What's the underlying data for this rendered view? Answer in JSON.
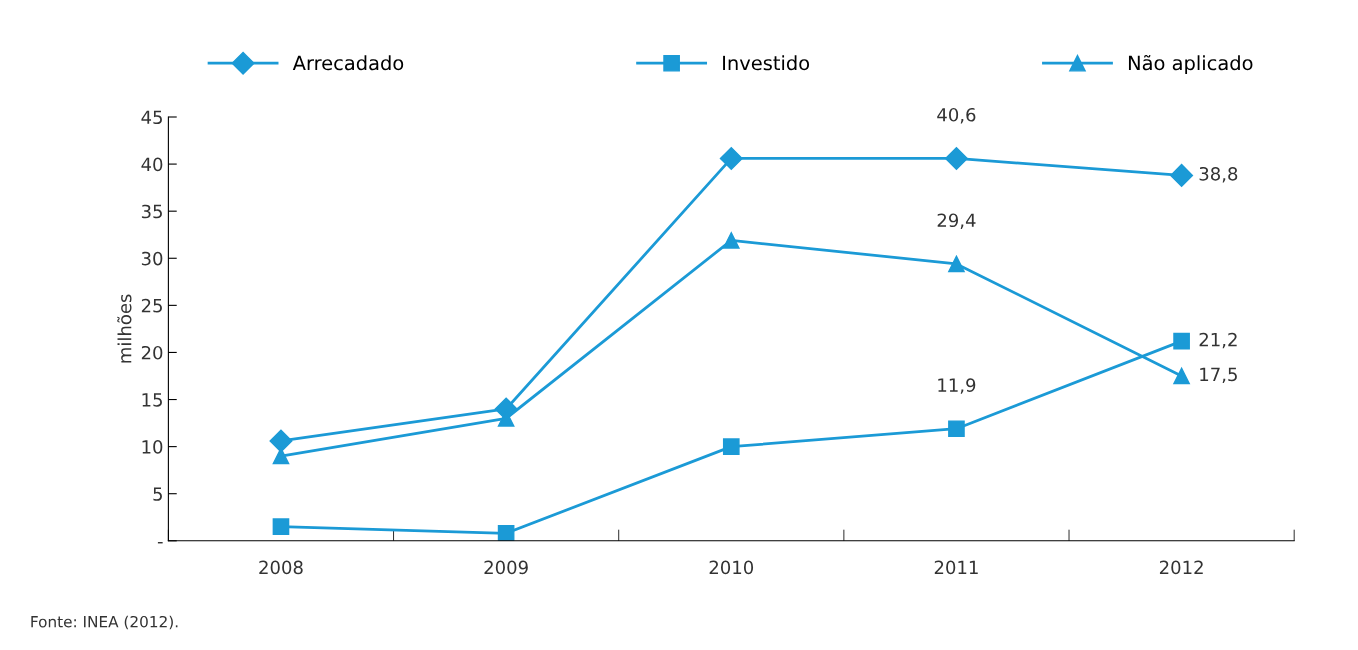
{
  "chart_data": {
    "type": "line",
    "ylabel": "milhões",
    "categories": [
      "2008",
      "2009",
      "2010",
      "2011",
      "2012"
    ],
    "series": [
      {
        "name": "Arrecadado",
        "color": "#1b9ad6",
        "marker": "diamond",
        "values": [
          10.6,
          14.0,
          40.6,
          40.6,
          38.8
        ],
        "value_labels": [
          null,
          null,
          null,
          "40,6",
          "38,8"
        ]
      },
      {
        "name": "Investido",
        "color": "#1b9ad6",
        "marker": "square",
        "values": [
          1.5,
          0.8,
          10.0,
          11.9,
          21.2
        ],
        "value_labels": [
          null,
          null,
          null,
          "11,9",
          "21,2"
        ]
      },
      {
        "name": "Não aplicado",
        "color": "#1b9ad6",
        "marker": "triangle",
        "values": [
          9.0,
          13.0,
          31.9,
          29.4,
          17.5
        ],
        "value_labels": [
          null,
          null,
          null,
          "29,4",
          "17,5"
        ]
      }
    ],
    "ylim": [
      0,
      45
    ],
    "yticks": [
      {
        "value": 0,
        "label": "-"
      },
      5,
      10,
      15,
      20,
      25,
      30,
      35,
      40,
      45
    ],
    "grid": false,
    "legend": "top",
    "line_style": "solid",
    "annotations": [
      "Fonte: INEA (2012)."
    ]
  }
}
